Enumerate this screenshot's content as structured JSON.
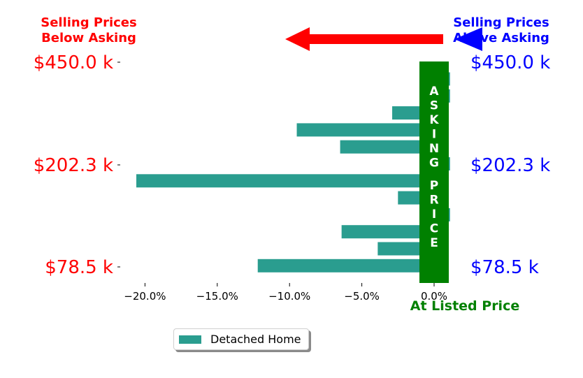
{
  "chart_data": {
    "type": "bar",
    "orientation": "horizontal",
    "xlim": [
      -0.215,
      0.01
    ],
    "xticks": [
      -0.2,
      -0.15,
      -0.1,
      -0.05,
      0.0
    ],
    "xtick_labels": [
      "−20.0%",
      "−15.0%",
      "−10.0%",
      "−5.0%",
      "0.0%"
    ],
    "series": [
      {
        "name": "Detached Home",
        "color": "#2a9d8f",
        "values": [
          0.011,
          0.011,
          -0.029,
          -0.095,
          -0.065,
          0.011,
          -0.206,
          -0.025,
          0.011,
          -0.064,
          -0.039,
          -0.122
        ]
      }
    ],
    "left_price_labels": [
      "$450.0 k",
      "$202.3 k",
      "$78.5 k"
    ],
    "right_price_labels": [
      "$450.0 k",
      "$202.3 k",
      "$78.5 k"
    ],
    "header_left": [
      "Selling Prices",
      "Below Asking"
    ],
    "header_right": [
      "Selling Prices",
      "Above Asking"
    ],
    "asking_price_label": "ASKING PRICE",
    "at_listed_label": "At Listed Price",
    "legend_position": "bottom-left",
    "colors": {
      "below": "#ff0000",
      "above": "#0000ff",
      "asking": "#008000",
      "bar": "#2a9d8f"
    }
  }
}
